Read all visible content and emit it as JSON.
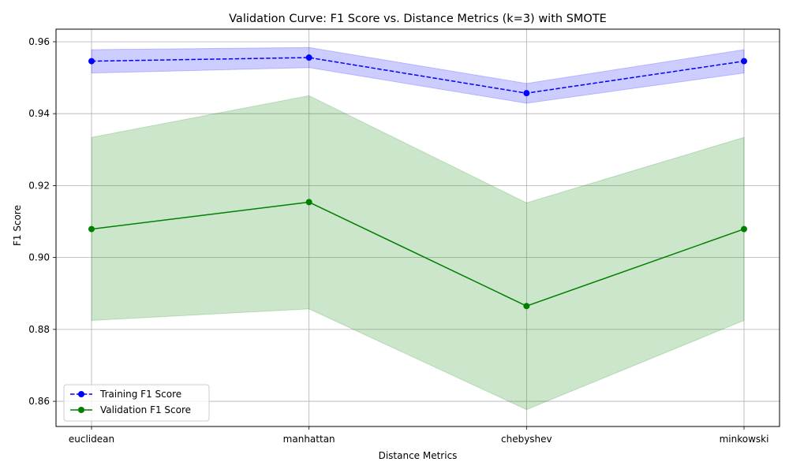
{
  "chart_data": {
    "type": "line",
    "title": "Validation Curve: F1 Score vs. Distance Metrics (k=3) with SMOTE",
    "xlabel": "Distance Metrics",
    "ylabel": "F1 Score",
    "categories": [
      "euclidean",
      "manhattan",
      "chebyshev",
      "minkowski"
    ],
    "ylim": [
      0.853,
      0.9635
    ],
    "yticks": [
      0.86,
      0.88,
      0.9,
      0.92,
      0.94,
      0.96
    ],
    "ytick_labels": [
      "0.86",
      "0.88",
      "0.90",
      "0.92",
      "0.94",
      "0.96"
    ],
    "grid": true,
    "legend_position": "lower-left",
    "series": [
      {
        "name": "Training F1 Score",
        "values": [
          0.9546,
          0.9556,
          0.9457,
          0.9546
        ],
        "band_lower": [
          0.9513,
          0.9528,
          0.9429,
          0.9513
        ],
        "band_upper": [
          0.9578,
          0.9584,
          0.9484,
          0.9578
        ],
        "color": "#0000ff",
        "band_color": "#0000ff",
        "line_style": "dashed",
        "marker": "circle"
      },
      {
        "name": "Validation F1 Score",
        "values": [
          0.9079,
          0.9154,
          0.8865,
          0.9079
        ],
        "band_lower": [
          0.8825,
          0.8857,
          0.8577,
          0.8825
        ],
        "band_upper": [
          0.9334,
          0.945,
          0.9152,
          0.9334
        ],
        "color": "#008000",
        "band_color": "#008000",
        "line_style": "solid",
        "marker": "circle"
      }
    ]
  }
}
